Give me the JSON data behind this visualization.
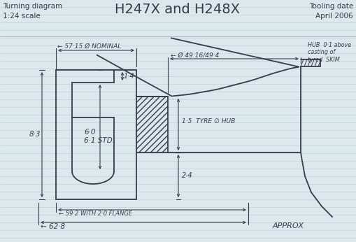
{
  "title": "H247X and H248X",
  "subtitle_left1": "Turning diagram",
  "subtitle_left2": "1:24 scale",
  "subtitle_right1": "Tooling date",
  "subtitle_right2": "April 2006",
  "bg_color": "#dde8ed",
  "line_color": "#3a3a4a",
  "ruled_color": "#b8ccd6",
  "figsize": [
    5.09,
    3.46
  ],
  "dpi": 100
}
